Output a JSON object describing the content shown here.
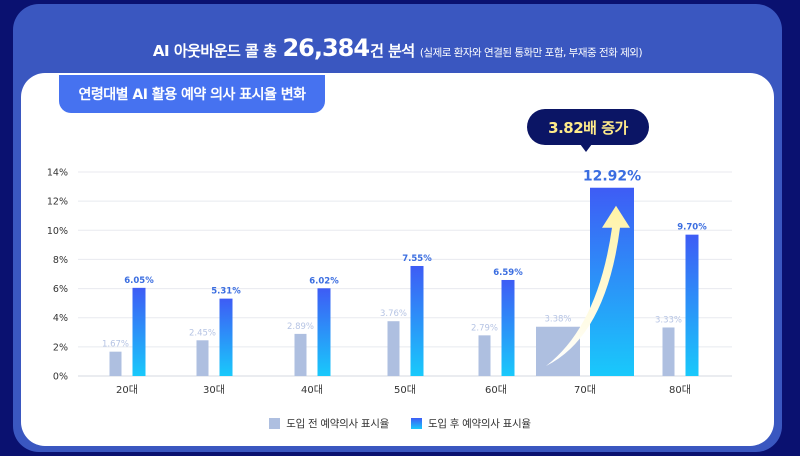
{
  "headline": {
    "main_prefix": "AI 아웃바운드 콜 총",
    "count": "26,384",
    "main_suffix": "건 분석",
    "note": "(실제로 환자와 연결된 통화만 포함, 부재중 전화 제외)"
  },
  "panel": {
    "title": "연령대별 AI 활용 예약 의사 표시율 변화"
  },
  "callout": {
    "label": "3.82배 증가",
    "target_category": "70대"
  },
  "colors": {
    "background": "#0a1170",
    "card": "#3a57c0",
    "pill": "#4672f0",
    "before_bar": "#aebfe0",
    "after_bar_top": "#3e5cf5",
    "after_bar_bottom": "#19c9fb",
    "after_label": "#3a6de0",
    "before_label": "#b6c4e4",
    "callout_bg": "#0b1565",
    "callout_text": "#ffeb8a"
  },
  "chart_data": {
    "type": "bar",
    "title": "연령대별 AI 활용 예약 의사 표시율 변화",
    "xlabel": "",
    "ylabel": "",
    "ylim": [
      0,
      14
    ],
    "y_ticks": [
      "0%",
      "2%",
      "4%",
      "6%",
      "8%",
      "10%",
      "12%",
      "14%"
    ],
    "y_tick_values": [
      0,
      2,
      4,
      6,
      8,
      10,
      12,
      14
    ],
    "grid": true,
    "legend_position": "bottom-center",
    "categories": [
      "20대",
      "30대",
      "40대",
      "50대",
      "60대",
      "70대",
      "80대"
    ],
    "series": [
      {
        "name": "도입 전 예약의사 표시율",
        "values": [
          1.67,
          2.45,
          2.89,
          3.76,
          2.79,
          3.38,
          3.33
        ],
        "labels": [
          "1.67%",
          "2.45%",
          "2.89%",
          "3.76%",
          "2.79%",
          "3.38%",
          "3.33%"
        ]
      },
      {
        "name": "도입 후 예약의사 표시율",
        "values": [
          6.05,
          5.31,
          6.02,
          7.55,
          6.59,
          12.92,
          9.7
        ],
        "labels": [
          "6.05%",
          "5.31%",
          "6.02%",
          "7.55%",
          "6.59%",
          "12.92%",
          "9.70%"
        ]
      }
    ],
    "annotation": "3.82배 증가"
  }
}
